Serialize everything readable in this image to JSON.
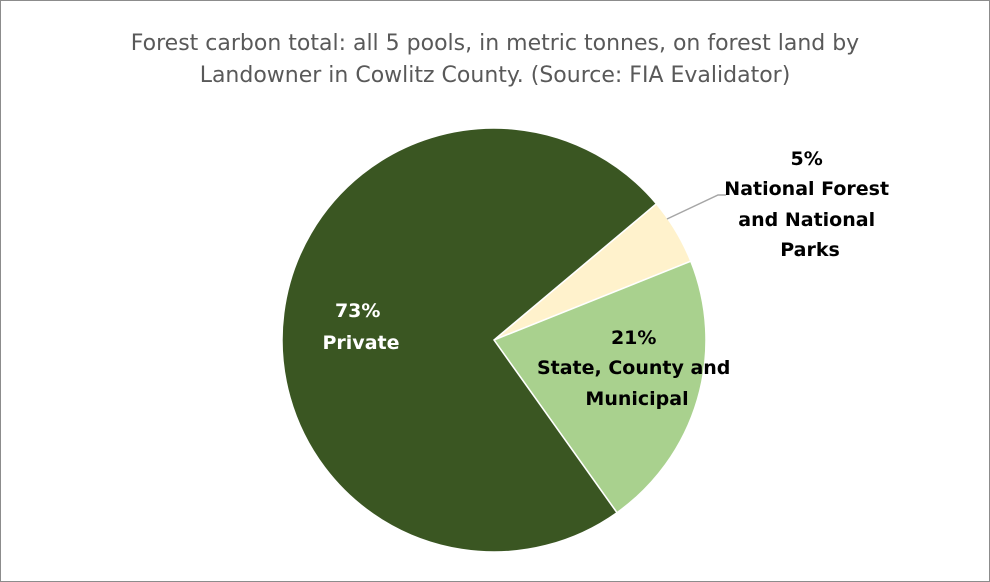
{
  "chart_data": {
    "type": "pie",
    "title_line1": "Forest carbon total: all 5 pools, in metric tonnes, on forest land by",
    "title_line2": "Landowner in Cowlitz County.  (Source: FIA Evalidator)",
    "slices": [
      {
        "label_pct": "73%",
        "label_name": "Private",
        "value": 73,
        "color": "#3a5622"
      },
      {
        "label_pct": "5%",
        "label_name_lines": [
          "National Forest",
          "and National",
          "Parks"
        ],
        "value": 5,
        "color": "#fff2cc"
      },
      {
        "label_pct": "21%",
        "label_name_lines": [
          "State, County and",
          "Municipal"
        ],
        "value": 21,
        "color": "#a9d18e"
      }
    ],
    "legend": "none",
    "leader_line_color": "#a6a6a6"
  }
}
